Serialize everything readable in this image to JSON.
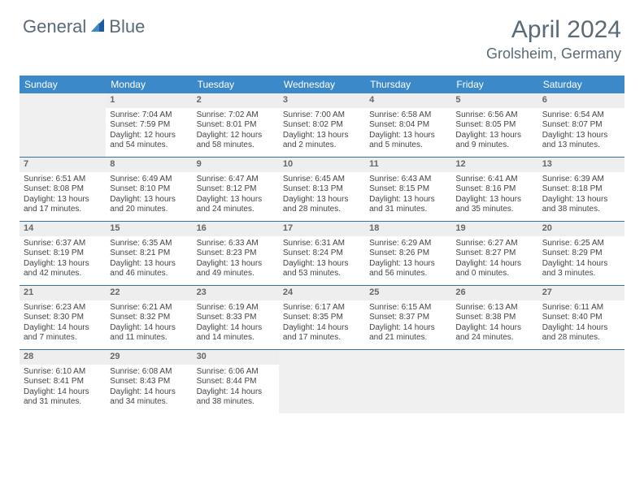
{
  "logo": {
    "part1": "General",
    "part2": "Blue"
  },
  "title": "April 2024",
  "location": "Grolsheim, Germany",
  "header_bg": "#3b89c9",
  "header_text": "#ffffff",
  "border_color": "#3b6f9e",
  "empty_bg": "#f0f0f0",
  "daynum_bg": "#eeeeee",
  "days": [
    "Sunday",
    "Monday",
    "Tuesday",
    "Wednesday",
    "Thursday",
    "Friday",
    "Saturday"
  ],
  "weeks": [
    [
      null,
      {
        "n": "1",
        "sr": "Sunrise: 7:04 AM",
        "ss": "Sunset: 7:59 PM",
        "dl": "Daylight: 12 hours and 54 minutes."
      },
      {
        "n": "2",
        "sr": "Sunrise: 7:02 AM",
        "ss": "Sunset: 8:01 PM",
        "dl": "Daylight: 12 hours and 58 minutes."
      },
      {
        "n": "3",
        "sr": "Sunrise: 7:00 AM",
        "ss": "Sunset: 8:02 PM",
        "dl": "Daylight: 13 hours and 2 minutes."
      },
      {
        "n": "4",
        "sr": "Sunrise: 6:58 AM",
        "ss": "Sunset: 8:04 PM",
        "dl": "Daylight: 13 hours and 5 minutes."
      },
      {
        "n": "5",
        "sr": "Sunrise: 6:56 AM",
        "ss": "Sunset: 8:05 PM",
        "dl": "Daylight: 13 hours and 9 minutes."
      },
      {
        "n": "6",
        "sr": "Sunrise: 6:54 AM",
        "ss": "Sunset: 8:07 PM",
        "dl": "Daylight: 13 hours and 13 minutes."
      }
    ],
    [
      {
        "n": "7",
        "sr": "Sunrise: 6:51 AM",
        "ss": "Sunset: 8:08 PM",
        "dl": "Daylight: 13 hours and 17 minutes."
      },
      {
        "n": "8",
        "sr": "Sunrise: 6:49 AM",
        "ss": "Sunset: 8:10 PM",
        "dl": "Daylight: 13 hours and 20 minutes."
      },
      {
        "n": "9",
        "sr": "Sunrise: 6:47 AM",
        "ss": "Sunset: 8:12 PM",
        "dl": "Daylight: 13 hours and 24 minutes."
      },
      {
        "n": "10",
        "sr": "Sunrise: 6:45 AM",
        "ss": "Sunset: 8:13 PM",
        "dl": "Daylight: 13 hours and 28 minutes."
      },
      {
        "n": "11",
        "sr": "Sunrise: 6:43 AM",
        "ss": "Sunset: 8:15 PM",
        "dl": "Daylight: 13 hours and 31 minutes."
      },
      {
        "n": "12",
        "sr": "Sunrise: 6:41 AM",
        "ss": "Sunset: 8:16 PM",
        "dl": "Daylight: 13 hours and 35 minutes."
      },
      {
        "n": "13",
        "sr": "Sunrise: 6:39 AM",
        "ss": "Sunset: 8:18 PM",
        "dl": "Daylight: 13 hours and 38 minutes."
      }
    ],
    [
      {
        "n": "14",
        "sr": "Sunrise: 6:37 AM",
        "ss": "Sunset: 8:19 PM",
        "dl": "Daylight: 13 hours and 42 minutes."
      },
      {
        "n": "15",
        "sr": "Sunrise: 6:35 AM",
        "ss": "Sunset: 8:21 PM",
        "dl": "Daylight: 13 hours and 46 minutes."
      },
      {
        "n": "16",
        "sr": "Sunrise: 6:33 AM",
        "ss": "Sunset: 8:23 PM",
        "dl": "Daylight: 13 hours and 49 minutes."
      },
      {
        "n": "17",
        "sr": "Sunrise: 6:31 AM",
        "ss": "Sunset: 8:24 PM",
        "dl": "Daylight: 13 hours and 53 minutes."
      },
      {
        "n": "18",
        "sr": "Sunrise: 6:29 AM",
        "ss": "Sunset: 8:26 PM",
        "dl": "Daylight: 13 hours and 56 minutes."
      },
      {
        "n": "19",
        "sr": "Sunrise: 6:27 AM",
        "ss": "Sunset: 8:27 PM",
        "dl": "Daylight: 14 hours and 0 minutes."
      },
      {
        "n": "20",
        "sr": "Sunrise: 6:25 AM",
        "ss": "Sunset: 8:29 PM",
        "dl": "Daylight: 14 hours and 3 minutes."
      }
    ],
    [
      {
        "n": "21",
        "sr": "Sunrise: 6:23 AM",
        "ss": "Sunset: 8:30 PM",
        "dl": "Daylight: 14 hours and 7 minutes."
      },
      {
        "n": "22",
        "sr": "Sunrise: 6:21 AM",
        "ss": "Sunset: 8:32 PM",
        "dl": "Daylight: 14 hours and 11 minutes."
      },
      {
        "n": "23",
        "sr": "Sunrise: 6:19 AM",
        "ss": "Sunset: 8:33 PM",
        "dl": "Daylight: 14 hours and 14 minutes."
      },
      {
        "n": "24",
        "sr": "Sunrise: 6:17 AM",
        "ss": "Sunset: 8:35 PM",
        "dl": "Daylight: 14 hours and 17 minutes."
      },
      {
        "n": "25",
        "sr": "Sunrise: 6:15 AM",
        "ss": "Sunset: 8:37 PM",
        "dl": "Daylight: 14 hours and 21 minutes."
      },
      {
        "n": "26",
        "sr": "Sunrise: 6:13 AM",
        "ss": "Sunset: 8:38 PM",
        "dl": "Daylight: 14 hours and 24 minutes."
      },
      {
        "n": "27",
        "sr": "Sunrise: 6:11 AM",
        "ss": "Sunset: 8:40 PM",
        "dl": "Daylight: 14 hours and 28 minutes."
      }
    ],
    [
      {
        "n": "28",
        "sr": "Sunrise: 6:10 AM",
        "ss": "Sunset: 8:41 PM",
        "dl": "Daylight: 14 hours and 31 minutes."
      },
      {
        "n": "29",
        "sr": "Sunrise: 6:08 AM",
        "ss": "Sunset: 8:43 PM",
        "dl": "Daylight: 14 hours and 34 minutes."
      },
      {
        "n": "30",
        "sr": "Sunrise: 6:06 AM",
        "ss": "Sunset: 8:44 PM",
        "dl": "Daylight: 14 hours and 38 minutes."
      },
      null,
      null,
      null,
      null
    ]
  ]
}
